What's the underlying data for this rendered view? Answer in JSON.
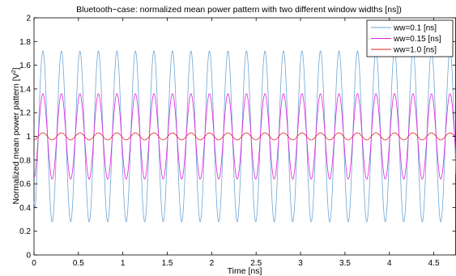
{
  "chart_data": {
    "type": "line",
    "title": "Bluetooth−case: normalized mean power pattern with two different window widths [ns])",
    "xlabel": "Time [ns]",
    "ylabel_main": "Normalized mean power pattern [V",
    "ylabel_sup": "2",
    "ylabel_tail": "]",
    "xlim": [
      0,
      4.75
    ],
    "ylim": [
      0,
      2
    ],
    "xticks": [
      0,
      0.5,
      1,
      1.5,
      2,
      2.5,
      3,
      3.5,
      4,
      4.5
    ],
    "xtick_labels": [
      "0",
      "0.5",
      "1",
      "1.5",
      "2",
      "2.5",
      "3",
      "3.5",
      "4",
      "4.5"
    ],
    "yticks": [
      0,
      0.2,
      0.4,
      0.6,
      0.8,
      1,
      1.2,
      1.4,
      1.6,
      1.8,
      2
    ],
    "ytick_labels": [
      "0",
      "0.2",
      "0.4",
      "0.6",
      "0.8",
      "1",
      "1.2",
      "1.4",
      "1.6",
      "1.8",
      "2"
    ],
    "grid": false,
    "legend_position": "top-right",
    "series": [
      {
        "name": "ww=0.1 [ns]",
        "color": "#6ea6d6",
        "mean": 1.0,
        "amplitude": 0.72,
        "period": 0.2083,
        "phase_x": 0.1,
        "start_y": 0.45
      },
      {
        "name": "ww=0.15 [ns]",
        "color": "#e020e0",
        "mean": 1.0,
        "amplitude": 0.36,
        "period": 0.2083,
        "phase_x": 0.1,
        "start_y": 0.66
      },
      {
        "name": "ww=1.0 [ns]",
        "color": "#e02020",
        "mean": 1.0,
        "amplitude": 0.03,
        "period": 0.2083,
        "phase_x": 0.1,
        "start_y": 0.97
      }
    ]
  }
}
